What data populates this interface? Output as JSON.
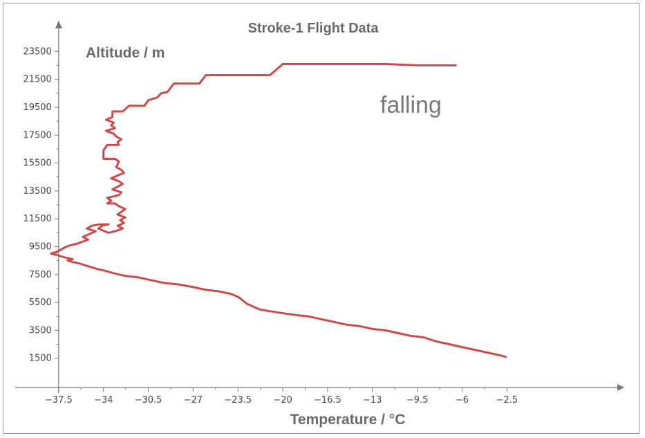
{
  "chart_data": {
    "type": "line",
    "title": "Stroke-1 Flight Data",
    "xlabel": "Temperature / °C",
    "ylabel": "Altitude / m",
    "annotation": "falling",
    "xlim": [
      -41,
      6.5
    ],
    "ylim": [
      -600,
      25800
    ],
    "x_ticks": [
      "-37.5",
      "-34",
      "-30.5",
      "-27",
      "-23.5",
      "-20",
      "-16.5",
      "-13",
      "-9.5",
      "-6",
      "-2.5"
    ],
    "x_tick_values": [
      -37.5,
      -34,
      -30.5,
      -27,
      -23.5,
      -20,
      -16.5,
      -13,
      -9.5,
      -6,
      -2.5
    ],
    "y_ticks": [
      "1500",
      "3500",
      "5500",
      "7500",
      "9500",
      "11500",
      "13500",
      "15500",
      "17500",
      "19500",
      "21500",
      "23500"
    ],
    "y_tick_values": [
      1500,
      3500,
      5500,
      7500,
      9500,
      11500,
      13500,
      15500,
      17500,
      19500,
      21500,
      23500
    ],
    "grid": false,
    "colors": {
      "line": "#cc4a4a",
      "axis": "#777777",
      "text": "#6a6a6a"
    },
    "series": [
      {
        "x": [
          -6.5,
          -9.5,
          -12,
          -16,
          -20,
          -21,
          -26,
          -26.5,
          -28.5,
          -29,
          -29.5,
          -29.8,
          -30.5,
          -30.8,
          -32,
          -32.5,
          -33.3,
          -33.3,
          -33.8,
          -33.2,
          -33.4,
          -33.1,
          -33.8,
          -33.2,
          -33,
          -32.6,
          -32.9,
          -32.8,
          -33.7,
          -34,
          -34,
          -33.1,
          -32.8,
          -32.9,
          -33,
          -32.6,
          -32.4,
          -32.9,
          -33.4,
          -32.8,
          -32.5,
          -32.9,
          -33.3,
          -32.6,
          -32.8,
          -33.7,
          -33.4,
          -33.7,
          -33.1,
          -32.8,
          -32.3,
          -32.6,
          -32.9,
          -32.3,
          -32.7,
          -32.4,
          -32.9,
          -32.5,
          -33.1,
          -33.6,
          -33.9,
          -34.4,
          -34.1,
          -33.6,
          -34.3,
          -34.9,
          -35.3,
          -34.6,
          -35.1,
          -35.6,
          -35.2,
          -35.8,
          -36.1,
          -36.6,
          -36.9,
          -37.3,
          -37.7,
          -38.1,
          -37.6,
          -37.3,
          -36.9,
          -36.4,
          -36.8,
          -36.4,
          -35.9,
          -35.2,
          -34.5,
          -34,
          -33.2,
          -32.3,
          -31.3,
          -30.3,
          -29.3,
          -28.2,
          -27,
          -26,
          -25,
          -24,
          -23.5,
          -23.2,
          -22.8,
          -22.3,
          -21.8,
          -21.2,
          -20.5,
          -19.8,
          -19,
          -18,
          -17,
          -16,
          -15,
          -14,
          -13,
          -12,
          -11,
          -10,
          -9,
          -8,
          -7,
          -6,
          -5,
          -4,
          -3,
          -2.6
        ],
        "y": [
          22500,
          22500,
          22600,
          22600,
          22600,
          21800,
          21800,
          21200,
          21200,
          20600,
          20500,
          20200,
          20000,
          19600,
          19600,
          19200,
          19200,
          18800,
          18600,
          18400,
          18200,
          18000,
          17800,
          17600,
          17400,
          17200,
          17000,
          16800,
          16800,
          16400,
          15800,
          15800,
          15600,
          15400,
          15200,
          15000,
          14800,
          14600,
          14400,
          14200,
          14000,
          13800,
          13600,
          13400,
          13200,
          13000,
          12800,
          12600,
          12600,
          12400,
          12200,
          12000,
          11800,
          11600,
          11400,
          11200,
          11000,
          10800,
          10600,
          10500,
          10600,
          10800,
          11000,
          11100,
          11100,
          11000,
          10800,
          10600,
          10400,
          10200,
          10000,
          9800,
          9700,
          9600,
          9500,
          9300,
          9100,
          9000,
          8900,
          8800,
          8700,
          8600,
          8500,
          8400,
          8300,
          8100,
          7900,
          7800,
          7600,
          7400,
          7300,
          7100,
          6900,
          6800,
          6600,
          6400,
          6300,
          6100,
          5900,
          5700,
          5400,
          5200,
          5000,
          4900,
          4800,
          4700,
          4600,
          4500,
          4300,
          4100,
          3900,
          3800,
          3600,
          3500,
          3300,
          3100,
          3000,
          2700,
          2500,
          2300,
          2100,
          1900,
          1700,
          1600
        ]
      }
    ]
  }
}
